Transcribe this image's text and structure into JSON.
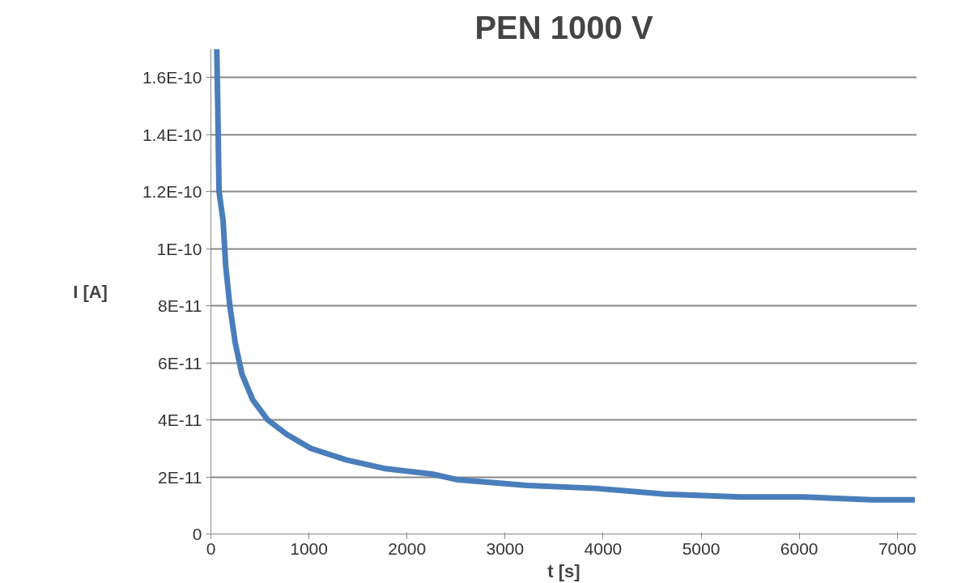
{
  "chart_data": {
    "type": "line",
    "title": "PEN 1000 V",
    "xlabel": "t [s]",
    "ylabel": "I [A]",
    "series": [
      {
        "color": "#4a7ebb",
        "x": [
          60,
          70,
          83,
          124,
          151,
          193,
          248,
          317,
          427,
          579,
          771,
          1019,
          1378,
          1763,
          2259,
          2521,
          3223,
          3928,
          4631,
          5405,
          6038,
          6741,
          7180
        ],
        "values": [
          1.7e-10,
          1.5e-10,
          1.2e-10,
          1.1e-10,
          9.4e-11,
          8e-11,
          6.7e-11,
          5.6e-11,
          4.7e-11,
          4e-11,
          3.5e-11,
          3e-11,
          2.6e-11,
          2.3e-11,
          2.1e-11,
          1.9e-11,
          1.7e-11,
          1.6e-11,
          1.4e-11,
          1.3e-11,
          1.3e-11,
          1.2e-11,
          1.2e-11
        ]
      }
    ],
    "xlim": [
      0,
      7200
    ],
    "xticks": [
      0,
      1000,
      2000,
      3000,
      4000,
      5000,
      6000,
      7000
    ],
    "ylim": [
      0,
      1.7e-10
    ],
    "yticks": [
      {
        "value": 0,
        "label": "0"
      },
      {
        "value": 2e-11,
        "label": "2E-11"
      },
      {
        "value": 4e-11,
        "label": "4E-11"
      },
      {
        "value": 6e-11,
        "label": "6E-11"
      },
      {
        "value": 8e-11,
        "label": "8E-11"
      },
      {
        "value": 1e-10,
        "label": "1E-10"
      },
      {
        "value": 1.2e-10,
        "label": "1.2E-10"
      },
      {
        "value": 1.4e-10,
        "label": "1.4E-10"
      },
      {
        "value": 1.6e-10,
        "label": "1.6E-10"
      }
    ],
    "grid": "y",
    "marker": "none",
    "line_style": "solid"
  }
}
